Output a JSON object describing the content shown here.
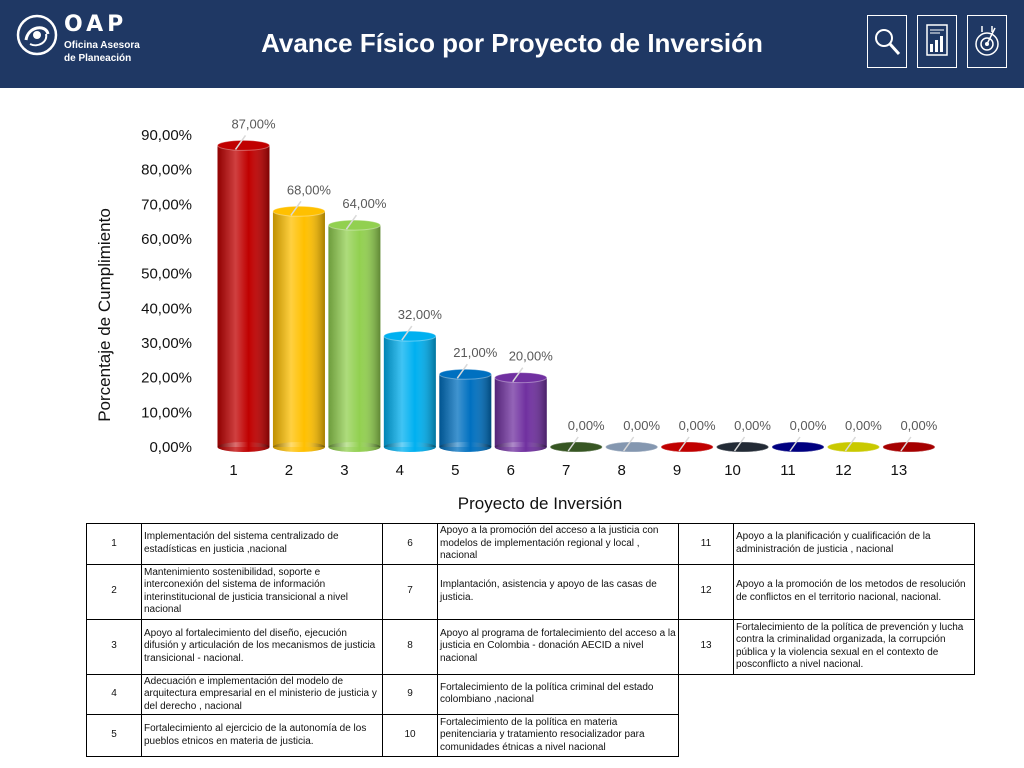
{
  "header": {
    "title": "Avance Físico por Proyecto de Inversión",
    "logo": {
      "acronym": "OAP",
      "line1": "Oficina Asesora",
      "line2": "de Planeación"
    },
    "icons": [
      "search-document-icon",
      "report-chart-icon",
      "target-icon"
    ],
    "background": "#1f3864"
  },
  "chart_data": {
    "type": "bar",
    "categories": [
      "1",
      "2",
      "3",
      "4",
      "5",
      "6",
      "7",
      "8",
      "9",
      "10",
      "11",
      "12",
      "13"
    ],
    "values": [
      87,
      68,
      64,
      32,
      21,
      20,
      0,
      0,
      0,
      0,
      0,
      0,
      0
    ],
    "value_labels": [
      "87,00%",
      "68,00%",
      "64,00%",
      "32,00%",
      "21,00%",
      "20,00%",
      "0,00%",
      "0,00%",
      "0,00%",
      "0,00%",
      "0,00%",
      "0,00%",
      "0,00%"
    ],
    "colors": [
      "#c00000",
      "#ffc000",
      "#92d050",
      "#00b0f0",
      "#0070c0",
      "#7030a0",
      "#375623",
      "#8497b0",
      "#c00000",
      "#222a35",
      "#000080",
      "#c9c900",
      "#a50000"
    ],
    "xlabel": "Proyecto de Inversión",
    "ylabel": "Porcentaje de Cumplimiento",
    "ylim": [
      0,
      90
    ],
    "yticks": [
      0,
      10,
      20,
      30,
      40,
      50,
      60,
      70,
      80,
      90
    ],
    "ytick_labels": [
      "0,00%",
      "10,00%",
      "20,00%",
      "30,00%",
      "40,00%",
      "50,00%",
      "60,00%",
      "70,00%",
      "80,00%",
      "90,00%"
    ],
    "grid": false,
    "style": "3d-cylinder"
  },
  "projects": [
    {
      "num": "1",
      "desc": "Implementación del sistema centralizado de estadísticas en justicia ,nacional"
    },
    {
      "num": "2",
      "desc": "Mantenimiento sostenibilidad, soporte e interconexión del sistema de información interinstitucional de justicia transicional a nivel nacional"
    },
    {
      "num": "3",
      "desc": "Apoyo al fortalecimiento del diseño, ejecución difusión y articulación de los mecanismos de justicia transicional - nacional."
    },
    {
      "num": "4",
      "desc": "Adecuación e implementación del modelo de arquitectura empresarial en el ministerio de justicia y del derecho , nacional"
    },
    {
      "num": "5",
      "desc": "Fortalecimiento al ejercicio de la autonomía de los pueblos etnicos en materia de justicia."
    },
    {
      "num": "6",
      "desc": "Apoyo a la promoción del acceso a la justicia con modelos de implementación regional y local , nacional"
    },
    {
      "num": "7",
      "desc": "Implantación, asistencia y apoyo de las casas de justicia."
    },
    {
      "num": "8",
      "desc": "Apoyo al programa de fortalecimiento del acceso a la justicia en Colombia - donación AECID a nivel nacional"
    },
    {
      "num": "9",
      "desc": "Fortalecimiento de la política criminal del estado colombiano ,nacional"
    },
    {
      "num": "10",
      "desc": "Fortalecimiento de la política en materia penitenciaria y tratamiento resocializador para comunidades étnicas a nivel nacional"
    },
    {
      "num": "11",
      "desc": "Apoyo a la planificación y cualificación de la administración de justicia , nacional"
    },
    {
      "num": "12",
      "desc": "Apoyo a la promoción de los metodos de resolución de conflictos en el territorio nacional, nacional."
    },
    {
      "num": "13",
      "desc": "Fortalecimiento de la política de prevención y lucha contra la criminalidad organizada, la corrupción pública y la violencia sexual en el contexto de posconflicto a nivel nacional."
    }
  ]
}
